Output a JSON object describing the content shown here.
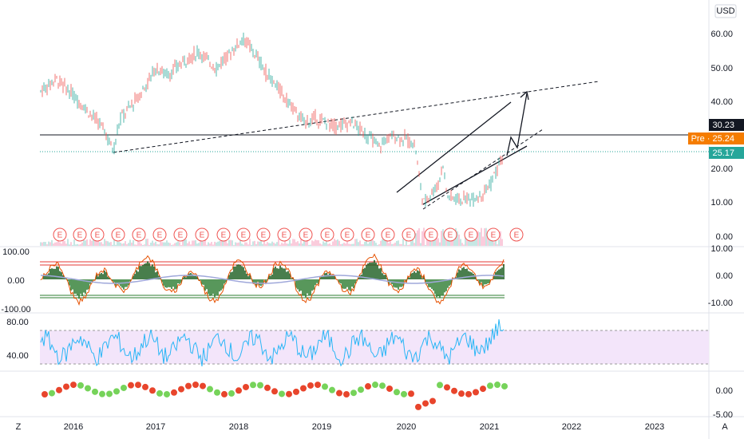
{
  "price_axis": {
    "currency": "USD",
    "ticks": [
      "60.00",
      "50.00",
      "40.00",
      "20.00",
      "10.00",
      "0.00"
    ],
    "last": "30.23",
    "pre": "Pre · 25.24",
    "close": "25.17"
  },
  "oscillator_axis": {
    "left": [
      "100.00",
      "0.00",
      "-100.00"
    ],
    "right": [
      "10.00",
      "0.00",
      "-10.00"
    ]
  },
  "rsi_axis": {
    "left": [
      "80.00",
      "40.00"
    ]
  },
  "bottom_axis": {
    "right": [
      "0.00",
      "-5.00"
    ]
  },
  "time_axis": {
    "labels": [
      "2016",
      "2017",
      "2018",
      "2019",
      "2020",
      "2021",
      "2022",
      "2023"
    ],
    "left_button": "Z",
    "right_button": "A"
  },
  "earnings": {
    "markers": [
      "E",
      "E",
      "E",
      "E",
      "E",
      "E",
      "E",
      "E",
      "E",
      "E",
      "E",
      "E",
      "E",
      "E",
      "E",
      "E",
      "E",
      "E",
      "E",
      "E",
      "E",
      "E",
      "E"
    ]
  }
}
